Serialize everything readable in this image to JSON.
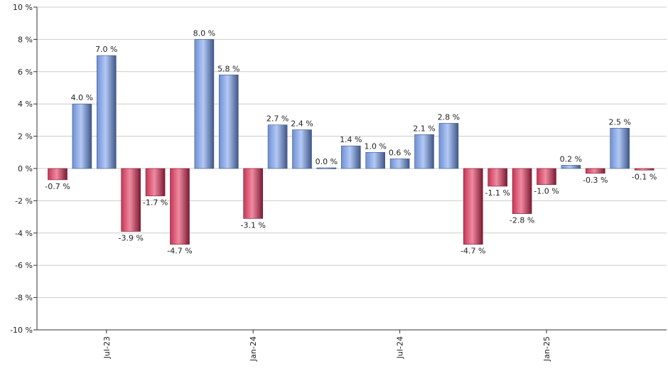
{
  "chart_data": {
    "type": "bar",
    "value_suffix": " %",
    "values": [
      -0.7,
      4.0,
      7.0,
      -3.9,
      -1.7,
      -4.7,
      8.0,
      5.8,
      -3.1,
      2.7,
      2.4,
      0.0,
      1.4,
      1.0,
      0.6,
      2.1,
      2.8,
      -4.7,
      -1.1,
      -2.8,
      -1.0,
      0.2,
      -0.3,
      2.5,
      -0.1
    ],
    "data_labels": [
      "-0.7 %",
      "4.0 %",
      "7.0 %",
      "-3.9 %",
      "-1.7 %",
      "-4.7 %",
      "8.0 %",
      "5.8 %",
      "-3.1 %",
      "2.7 %",
      "2.4 %",
      "0.0 %",
      "1.4 %",
      "1.0 %",
      "0.6 %",
      "2.1 %",
      "2.8 %",
      "-4.7 %",
      "-1.1 %",
      "-2.8 %",
      "-1.0 %",
      "0.2 %",
      "-0.3 %",
      "2.5 %",
      "-0.1 %"
    ],
    "x_tick_labels": [
      {
        "label": "Jul-23",
        "index": 2
      },
      {
        "label": "Jan-24",
        "index": 8
      },
      {
        "label": "Jul-24",
        "index": 14
      },
      {
        "label": "Jan-25",
        "index": 20
      }
    ],
    "y_tick_labels": [
      "10 %",
      "8 %",
      "6 %",
      "4 %",
      "2 %",
      "0 %",
      "-2 %",
      "-4 %",
      "-6 %",
      "-8 %",
      "-10 %"
    ],
    "y_ticks": [
      10,
      8,
      6,
      4,
      2,
      0,
      -2,
      -4,
      -6,
      -8,
      -10
    ],
    "ylim": [
      -10,
      10
    ],
    "grid": true,
    "legend": "none",
    "title": "",
    "xlabel": "",
    "ylabel": ""
  },
  "colors": {
    "positive": "#6f8fd3",
    "positive_light": "#a9c1f2",
    "positive_dark": "#3f5788",
    "negative": "#c63556",
    "negative_light": "#ee7d96",
    "negative_dark": "#7c1a33",
    "grid": "#cccccc",
    "axis": "#333333"
  }
}
